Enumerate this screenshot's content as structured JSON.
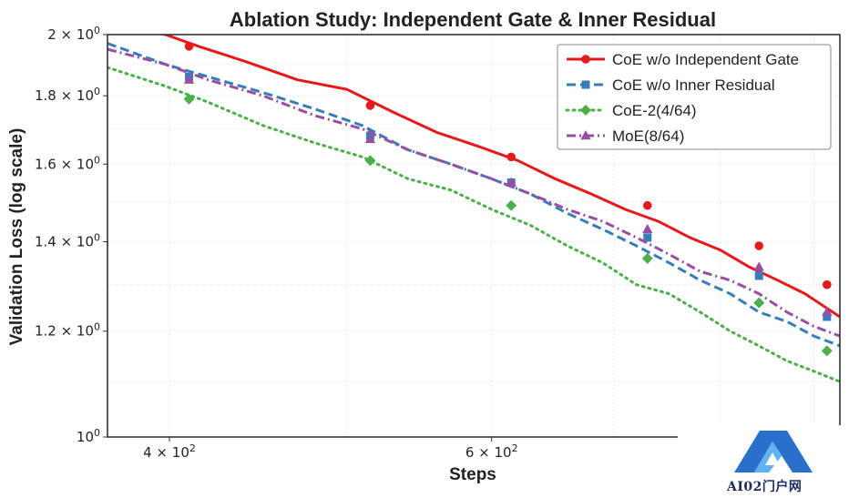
{
  "chart_data": {
    "type": "line",
    "title": "Ablation Study: Independent Gate & Inner Residual",
    "xlabel": "Steps",
    "ylabel": "Validation Loss (log scale)",
    "xscale": "log",
    "yscale": "log",
    "xlim": [
      370,
      930
    ],
    "ylim": [
      1.0,
      2.0
    ],
    "x_ticks": [
      {
        "value": 400,
        "label_base": "4 × 10",
        "label_exp": "2"
      },
      {
        "value": 600,
        "label_base": "6 × 10",
        "label_exp": "2"
      }
    ],
    "y_ticks": [
      {
        "value": 1.0,
        "label_base": "10",
        "label_exp": "0"
      },
      {
        "value": 1.2,
        "label_base": "1.2 × 10",
        "label_exp": "0"
      },
      {
        "value": 1.4,
        "label_base": "1.4 × 10",
        "label_exp": "0"
      },
      {
        "value": 1.6,
        "label_base": "1.6 × 10",
        "label_exp": "0"
      },
      {
        "value": 1.8,
        "label_base": "1.8 × 10",
        "label_exp": "0"
      },
      {
        "value": 2.0,
        "label_base": "2 × 10",
        "label_exp": "0"
      }
    ],
    "grid": true,
    "legend_position": "top-right",
    "series": [
      {
        "name": "CoE w/o Independent Gate",
        "color": "#e41a1c",
        "dash": "solid",
        "marker": "circle",
        "x": [
          370,
          398,
          415,
          440,
          470,
          500,
          530,
          560,
          590,
          620,
          650,
          680,
          710,
          740,
          770,
          800,
          830,
          860,
          890,
          930
        ],
        "y": [
          2.03,
          2.0,
          1.96,
          1.91,
          1.85,
          1.82,
          1.75,
          1.69,
          1.65,
          1.61,
          1.56,
          1.52,
          1.48,
          1.45,
          1.41,
          1.38,
          1.34,
          1.31,
          1.28,
          1.23
        ],
        "marker_x": [
          410,
          515,
          615,
          730,
          840,
          915
        ],
        "marker_y": [
          1.96,
          1.77,
          1.62,
          1.49,
          1.39,
          1.3
        ]
      },
      {
        "name": "CoE w/o Inner Residual",
        "color": "#377eb8",
        "dash": "dashed",
        "marker": "square",
        "x": [
          370,
          398,
          420,
          450,
          480,
          510,
          540,
          570,
          600,
          630,
          660,
          690,
          720,
          750,
          780,
          810,
          840,
          870,
          900,
          930
        ],
        "y": [
          1.97,
          1.9,
          1.86,
          1.81,
          1.76,
          1.71,
          1.64,
          1.6,
          1.56,
          1.52,
          1.47,
          1.43,
          1.39,
          1.35,
          1.31,
          1.28,
          1.24,
          1.22,
          1.19,
          1.17
        ],
        "marker_x": [
          410,
          515,
          615,
          730,
          840,
          915
        ],
        "marker_y": [
          1.86,
          1.68,
          1.55,
          1.41,
          1.32,
          1.23
        ]
      },
      {
        "name": "CoE-2(4/64)",
        "color": "#4daf4a",
        "dash": "dotted",
        "marker": "diamond",
        "x": [
          370,
          398,
          420,
          450,
          480,
          510,
          540,
          570,
          600,
          630,
          660,
          690,
          720,
          750,
          780,
          810,
          840,
          870,
          900,
          930
        ],
        "y": [
          1.89,
          1.83,
          1.78,
          1.71,
          1.66,
          1.62,
          1.56,
          1.53,
          1.48,
          1.44,
          1.39,
          1.35,
          1.3,
          1.28,
          1.24,
          1.2,
          1.17,
          1.14,
          1.12,
          1.1
        ],
        "marker_x": [
          410,
          515,
          615,
          730,
          840,
          915
        ],
        "marker_y": [
          1.79,
          1.61,
          1.49,
          1.36,
          1.26,
          1.16
        ]
      },
      {
        "name": "MoE(8/64)",
        "color": "#984ea3",
        "dash": "dashdot",
        "marker": "triangle",
        "x": [
          370,
          398,
          420,
          450,
          480,
          510,
          540,
          570,
          600,
          630,
          660,
          690,
          720,
          750,
          780,
          810,
          840,
          870,
          900,
          930
        ],
        "y": [
          1.95,
          1.9,
          1.85,
          1.8,
          1.74,
          1.7,
          1.64,
          1.6,
          1.56,
          1.52,
          1.48,
          1.45,
          1.41,
          1.37,
          1.33,
          1.31,
          1.28,
          1.24,
          1.21,
          1.19
        ],
        "marker_x": [
          410,
          515,
          615,
          730,
          840,
          915
        ],
        "marker_y": [
          1.85,
          1.67,
          1.55,
          1.43,
          1.34,
          1.24
        ]
      }
    ]
  },
  "watermark": {
    "text": "AI02门户网"
  }
}
